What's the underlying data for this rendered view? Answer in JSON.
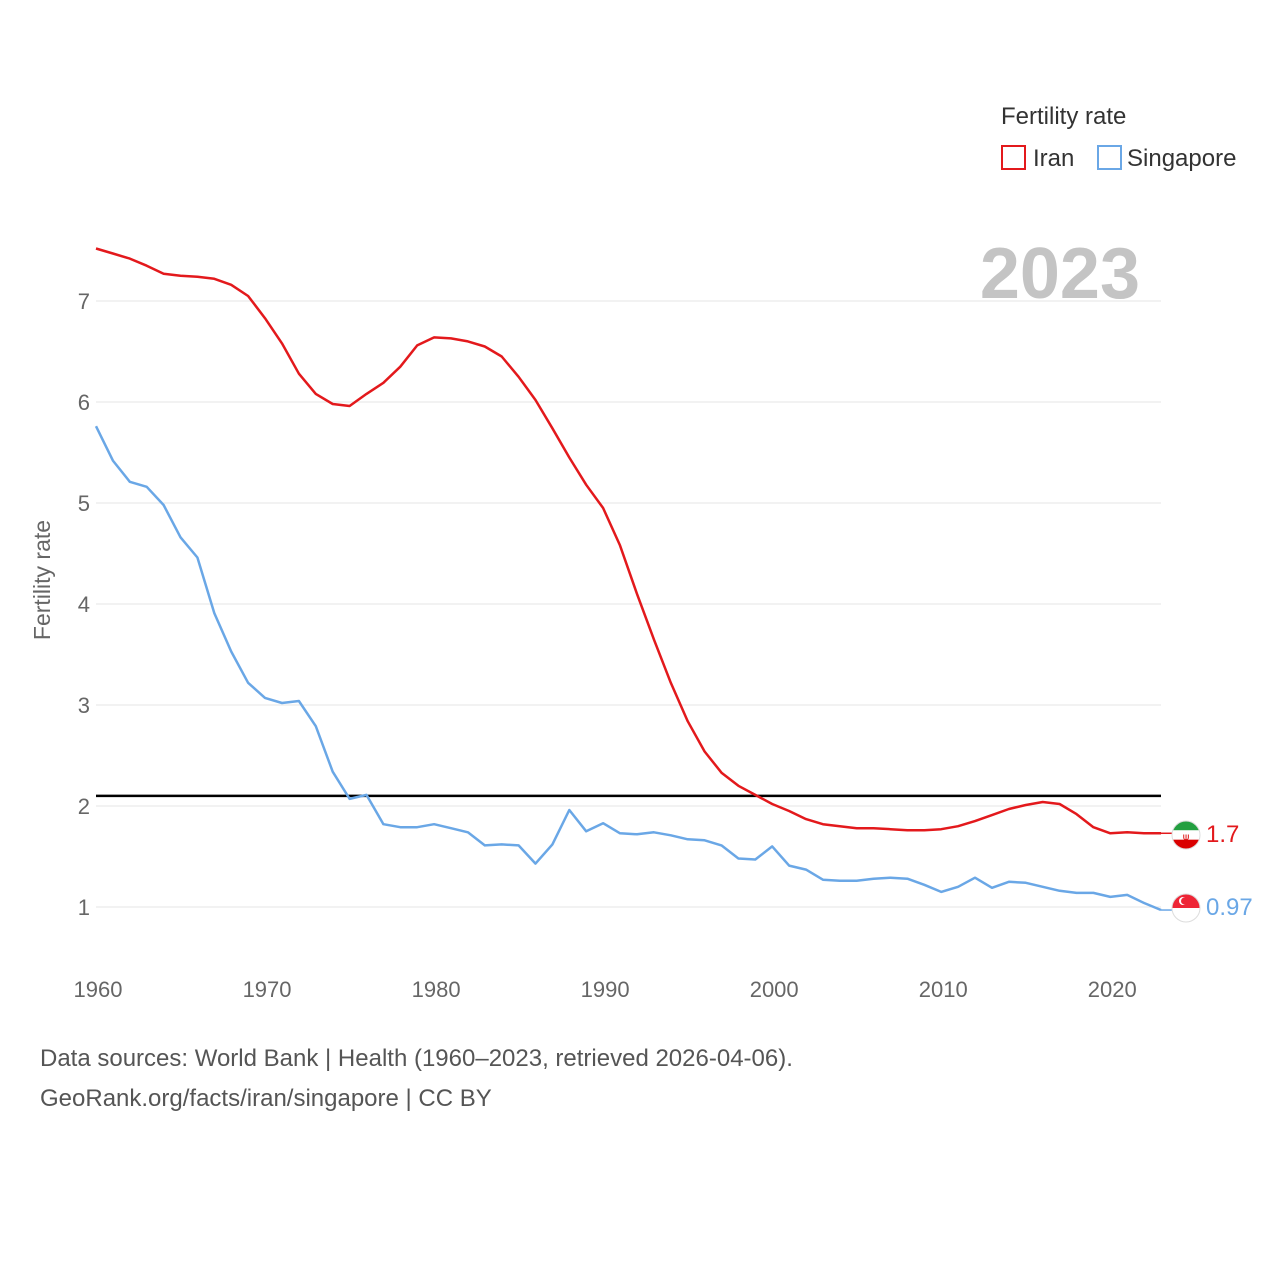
{
  "chart_data": {
    "type": "line",
    "legend_title": "Fertility rate",
    "ylabel": "Fertility rate",
    "year_label": "2023",
    "ylim": [
      0.4,
      7.6
    ],
    "xlim": [
      1960,
      2023
    ],
    "yticks": [
      1,
      2,
      3,
      4,
      5,
      6,
      7
    ],
    "xticks": [
      1960,
      1970,
      1980,
      1990,
      2000,
      2010,
      2020
    ],
    "reference_line": 2.1,
    "x": [
      1960,
      1961,
      1962,
      1963,
      1964,
      1965,
      1966,
      1967,
      1968,
      1969,
      1970,
      1971,
      1972,
      1973,
      1974,
      1975,
      1976,
      1977,
      1978,
      1979,
      1980,
      1981,
      1982,
      1983,
      1984,
      1985,
      1986,
      1987,
      1988,
      1989,
      1990,
      1991,
      1992,
      1993,
      1994,
      1995,
      1996,
      1997,
      1998,
      1999,
      2000,
      2001,
      2002,
      2003,
      2004,
      2005,
      2006,
      2007,
      2008,
      2009,
      2010,
      2011,
      2012,
      2013,
      2014,
      2015,
      2016,
      2017,
      2018,
      2019,
      2020,
      2021,
      2022,
      2023
    ],
    "series": [
      {
        "name": "Iran",
        "color": "#e3191c",
        "end_label": "1.7",
        "flag_icon": "iran-flag-icon",
        "values": [
          7.52,
          7.47,
          7.42,
          7.35,
          7.27,
          7.25,
          7.24,
          7.22,
          7.16,
          7.05,
          6.83,
          6.58,
          6.28,
          6.08,
          5.98,
          5.96,
          6.08,
          6.19,
          6.35,
          6.56,
          6.64,
          6.63,
          6.6,
          6.55,
          6.45,
          6.25,
          6.02,
          5.74,
          5.45,
          5.18,
          4.95,
          4.58,
          4.1,
          3.65,
          3.22,
          2.84,
          2.54,
          2.33,
          2.2,
          2.11,
          2.02,
          1.95,
          1.87,
          1.82,
          1.8,
          1.78,
          1.78,
          1.77,
          1.76,
          1.76,
          1.77,
          1.8,
          1.85,
          1.91,
          1.97,
          2.01,
          2.04,
          2.02,
          1.92,
          1.79,
          1.73,
          1.74,
          1.73,
          1.73
        ]
      },
      {
        "name": "Singapore",
        "color": "#6aa7e6",
        "end_label": "0.97",
        "flag_icon": "singapore-flag-icon",
        "values": [
          5.76,
          5.42,
          5.21,
          5.16,
          4.98,
          4.66,
          4.46,
          3.91,
          3.53,
          3.22,
          3.07,
          3.02,
          3.04,
          2.79,
          2.34,
          2.07,
          2.11,
          1.82,
          1.79,
          1.79,
          1.82,
          1.78,
          1.74,
          1.61,
          1.62,
          1.61,
          1.43,
          1.62,
          1.96,
          1.75,
          1.83,
          1.73,
          1.72,
          1.74,
          1.71,
          1.67,
          1.66,
          1.61,
          1.48,
          1.47,
          1.6,
          1.41,
          1.37,
          1.27,
          1.26,
          1.26,
          1.28,
          1.29,
          1.28,
          1.22,
          1.15,
          1.2,
          1.29,
          1.19,
          1.25,
          1.24,
          1.2,
          1.16,
          1.14,
          1.14,
          1.1,
          1.12,
          1.04,
          0.97
        ]
      }
    ]
  },
  "footer": {
    "line1": "Data sources: World Bank | Health (1960–2023, retrieved 2026-04-06).",
    "line2": "GeoRank.org/facts/iran/singapore | CC BY"
  }
}
